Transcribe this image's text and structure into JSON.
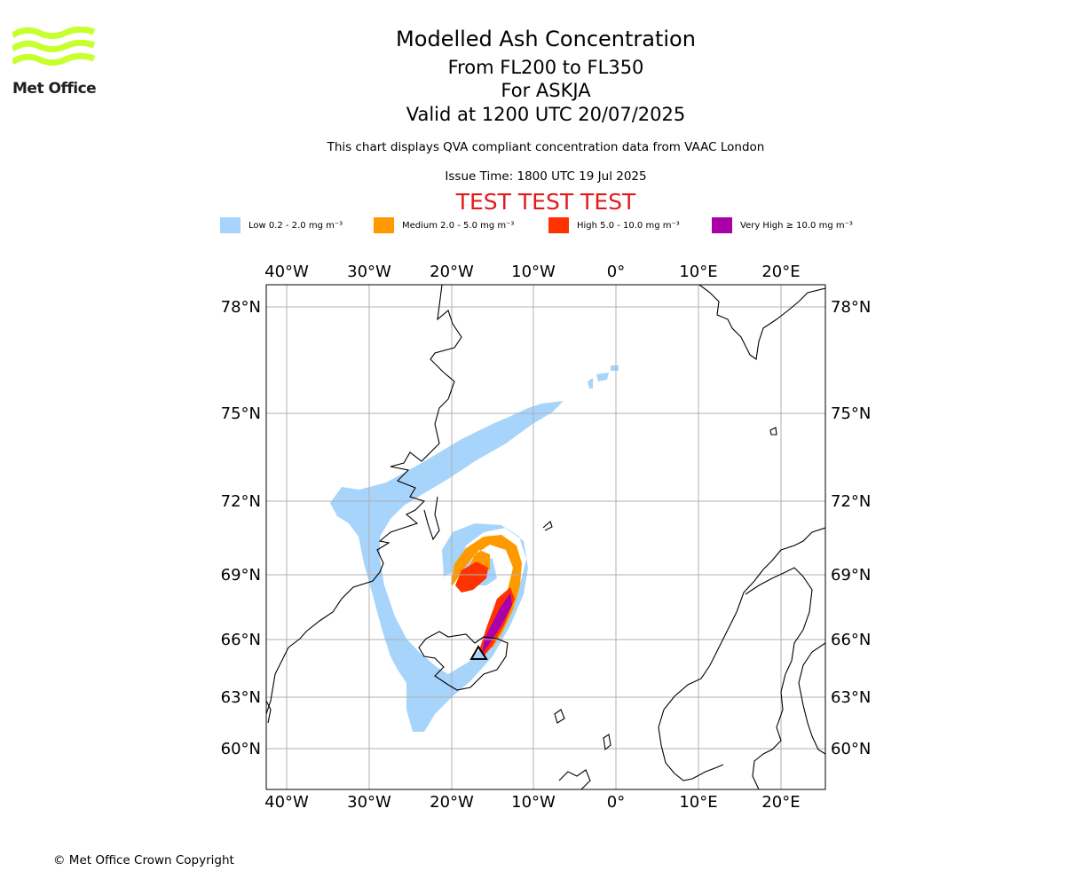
{
  "logo": {
    "text": "Met Office",
    "icon": "met-office-wave-logo",
    "color": "#c8ff2e"
  },
  "header": {
    "title": "Modelled Ash Concentration",
    "subtitle_levels": "From FL200 to FL350",
    "subtitle_volcano": "For ASKJA",
    "subtitle_valid": "Valid at 1200 UTC 20/07/2025",
    "note": "This chart displays QVA compliant concentration data from VAAC London",
    "issue_time": "Issue Time: 1800 UTC 19 Jul 2025",
    "test_banner": "TEST TEST TEST"
  },
  "legend": [
    {
      "label": "Low 0.2 - 2.0 mg m⁻³",
      "color": "#a6d4fb"
    },
    {
      "label": "Medium 2.0 - 5.0 mg m⁻³",
      "color": "#ff9900"
    },
    {
      "label": "High 5.0 - 10.0 mg m⁻³",
      "color": "#ff3300"
    },
    {
      "label": "Very High ≥ 10.0 mg m⁻³",
      "color": "#aa00aa"
    }
  ],
  "map": {
    "lon_ticks": [
      "40°W",
      "30°W",
      "20°W",
      "10°W",
      "0°",
      "10°E",
      "20°E"
    ],
    "lat_ticks": [
      "78°N",
      "75°N",
      "72°N",
      "69°N",
      "66°N",
      "63°N",
      "60°N"
    ],
    "volcano_marker": "triangle-icon"
  },
  "footer": {
    "copyright": "© Met Office Crown Copyright"
  }
}
